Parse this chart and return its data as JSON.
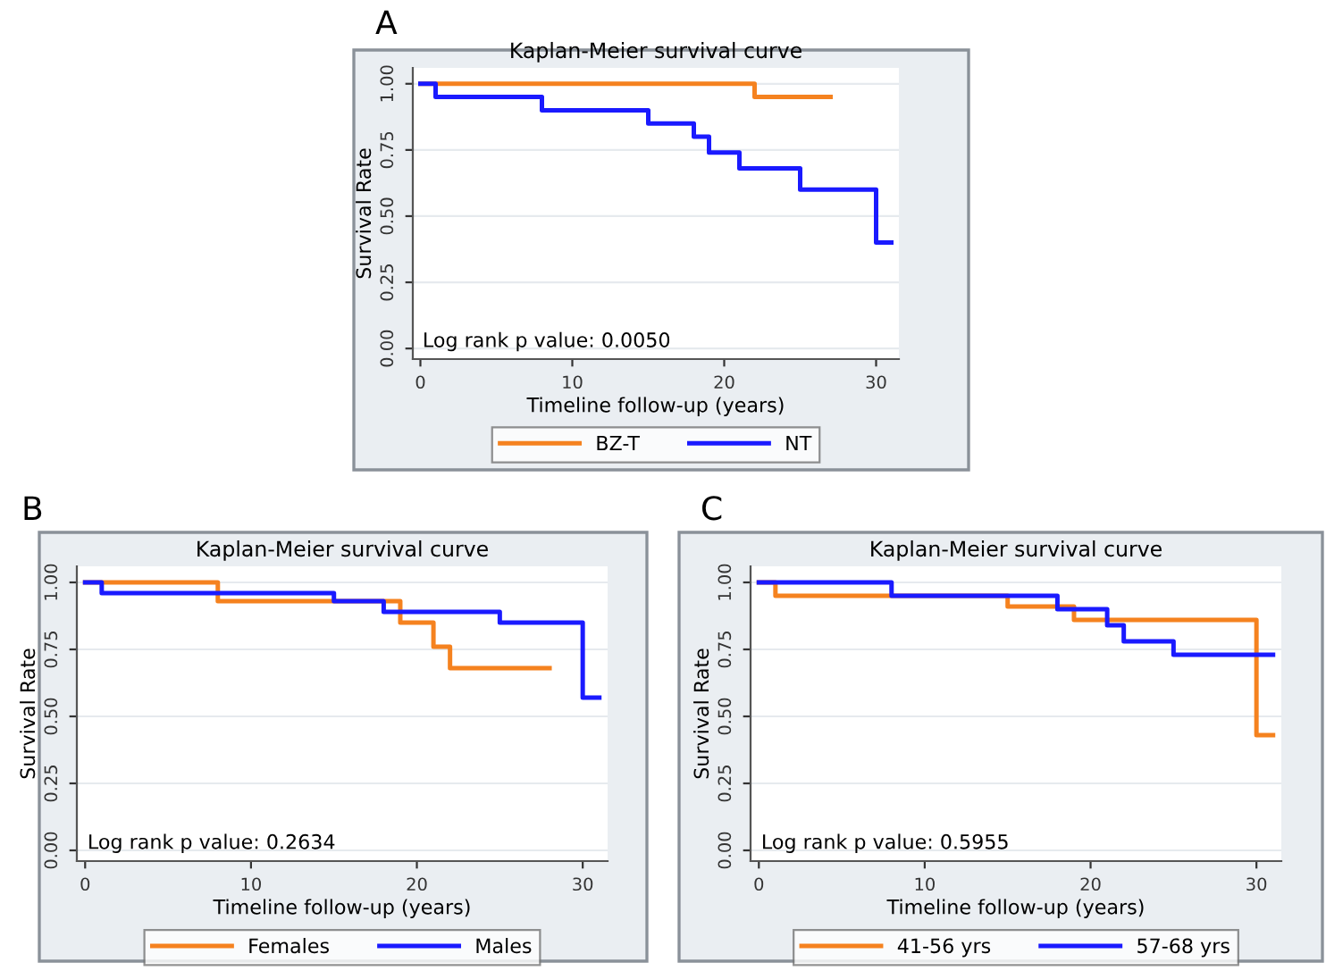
{
  "chart_data": [
    {
      "type": "step",
      "title": "Kaplan-Meier survival curve",
      "xlabel": "Timeline follow-up (years)",
      "ylabel": "Survival Rate",
      "annotations": [
        "A",
        "Log rank p value: 0.0050"
      ],
      "xlim": [
        -0.5,
        31.5
      ],
      "ylim": [
        -0.04,
        1.06
      ],
      "xticks": [
        0,
        10,
        20,
        30
      ],
      "yticks": [
        {
          "value": 0,
          "label": "0.00"
        },
        {
          "value": 0.25,
          "label": "0.25"
        },
        {
          "value": 0.5,
          "label": "0.50"
        },
        {
          "value": 0.75,
          "label": "0.75"
        },
        {
          "value": 1,
          "label": "1.00"
        }
      ],
      "grid": "y",
      "legend": "bottom",
      "series": [
        {
          "name": "BZ-T",
          "color": "#f5821f",
          "x": [
            0,
            22,
            27
          ],
          "values": [
            1,
            0.95,
            0.95
          ]
        },
        {
          "name": "NT",
          "color": "#1a1aff",
          "x": [
            0,
            1,
            8,
            15,
            18,
            19,
            21,
            25,
            30,
            31
          ],
          "values": [
            1,
            0.95,
            0.9,
            0.85,
            0.8,
            0.74,
            0.68,
            0.6,
            0.4,
            0.4
          ]
        }
      ]
    },
    {
      "type": "step",
      "title": "Kaplan-Meier survival curve",
      "xlabel": "Timeline follow-up (years)",
      "ylabel": "Survival Rate",
      "annotations": [
        "B",
        "Log rank p value: 0.2634"
      ],
      "xlim": [
        -0.5,
        31.5
      ],
      "ylim": [
        -0.04,
        1.06
      ],
      "xticks": [
        0,
        10,
        20,
        30
      ],
      "yticks": [
        {
          "value": 0,
          "label": "0.00"
        },
        {
          "value": 0.25,
          "label": "0.25"
        },
        {
          "value": 0.5,
          "label": "0.50"
        },
        {
          "value": 0.75,
          "label": "0.75"
        },
        {
          "value": 1,
          "label": "1.00"
        }
      ],
      "grid": "y",
      "legend": "bottom",
      "series": [
        {
          "name": "Females",
          "color": "#f5821f",
          "x": [
            0,
            8,
            19,
            21,
            22,
            28
          ],
          "values": [
            1,
            0.93,
            0.85,
            0.76,
            0.68,
            0.68
          ]
        },
        {
          "name": "Males",
          "color": "#1a1aff",
          "x": [
            0,
            1,
            15,
            18,
            25,
            30,
            31
          ],
          "values": [
            1,
            0.96,
            0.93,
            0.89,
            0.85,
            0.57,
            0.57
          ]
        }
      ]
    },
    {
      "type": "step",
      "title": "Kaplan-Meier survival curve",
      "xlabel": "Timeline follow-up (years)",
      "ylabel": "Survival Rate",
      "annotations": [
        "C",
        "Log rank p value: 0.5955"
      ],
      "xlim": [
        -0.5,
        31.5
      ],
      "ylim": [
        -0.04,
        1.06
      ],
      "xticks": [
        0,
        10,
        20,
        30
      ],
      "yticks": [
        {
          "value": 0,
          "label": "0.00"
        },
        {
          "value": 0.25,
          "label": "0.25"
        },
        {
          "value": 0.5,
          "label": "0.50"
        },
        {
          "value": 0.75,
          "label": "0.75"
        },
        {
          "value": 1,
          "label": "1.00"
        }
      ],
      "grid": "y",
      "legend": "bottom",
      "series": [
        {
          "name": "41-56 yrs",
          "color": "#f5821f",
          "x": [
            0,
            1,
            15,
            19,
            30,
            31
          ],
          "values": [
            1,
            0.95,
            0.91,
            0.86,
            0.43,
            0.43
          ]
        },
        {
          "name": "57-68 yrs",
          "color": "#1a1aff",
          "x": [
            0,
            8,
            18,
            21,
            22,
            25,
            31
          ],
          "values": [
            1,
            0.95,
            0.9,
            0.84,
            0.78,
            0.73,
            0.73
          ]
        }
      ]
    }
  ]
}
